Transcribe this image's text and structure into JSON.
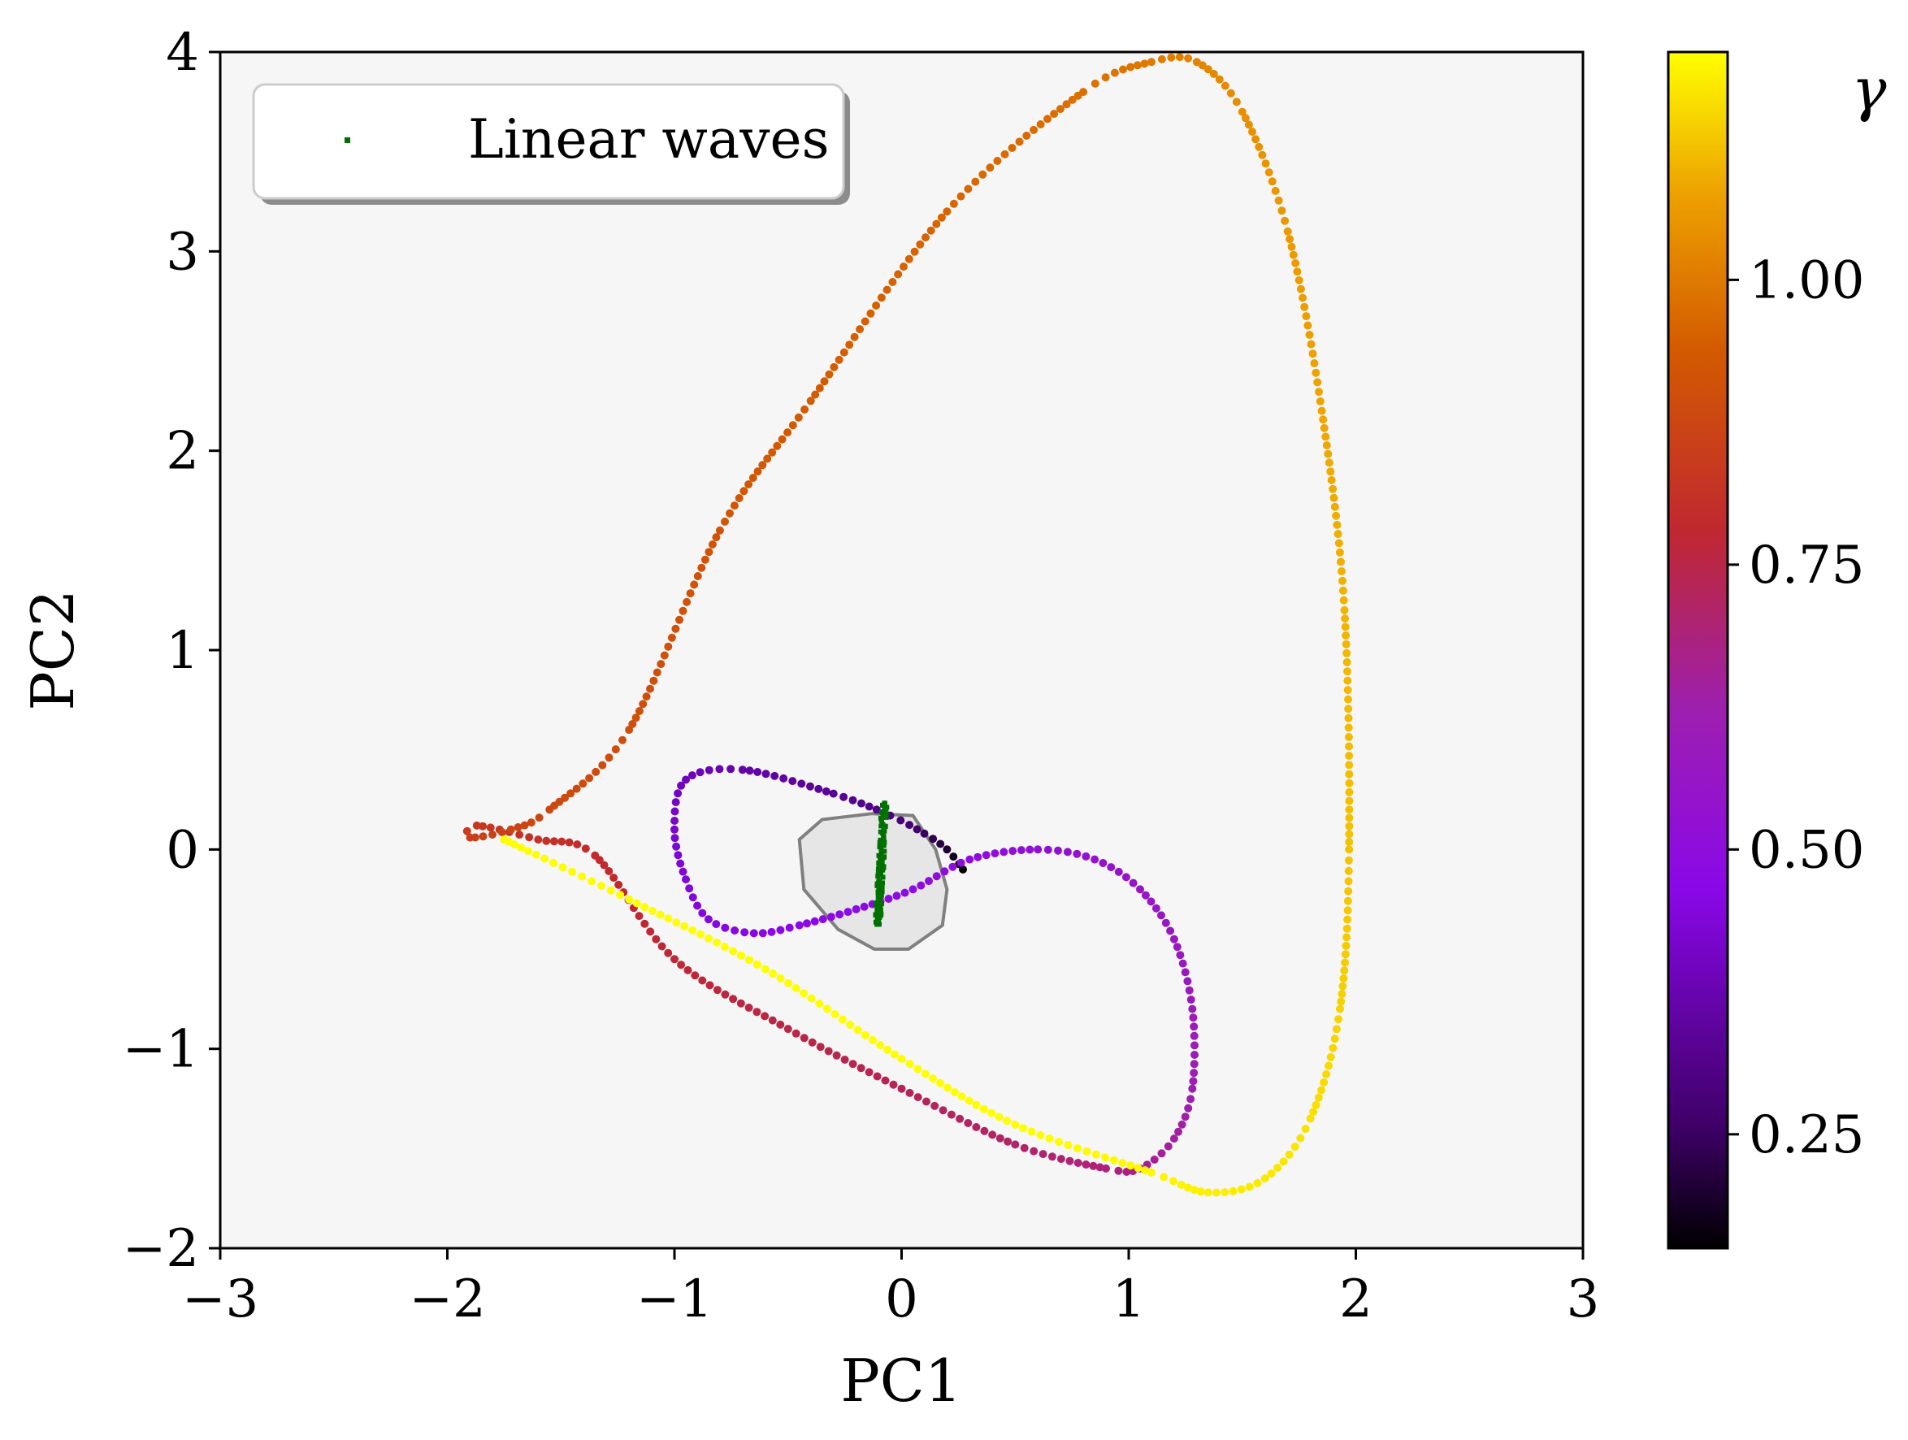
{
  "chart_data": {
    "type": "scatter",
    "xlabel": "PC1",
    "ylabel": "PC2",
    "xlim": [
      -3,
      3
    ],
    "ylim": [
      -2,
      4
    ],
    "xticks": [
      -3,
      -2,
      -1,
      0,
      1,
      2,
      3
    ],
    "yticks": [
      -2,
      -1,
      0,
      1,
      2,
      3,
      4
    ],
    "xtick_labels": [
      "−3",
      "−2",
      "−1",
      "0",
      "1",
      "2",
      "3"
    ],
    "ytick_labels": [
      "−2",
      "−1",
      "0",
      "1",
      "2",
      "3",
      "4"
    ],
    "grid": false,
    "plot_background": "#f6f6f6",
    "legend": {
      "placement": "upper-left",
      "entries": [
        {
          "label": "Linear waves",
          "color": "#007000"
        }
      ]
    },
    "colorbar": {
      "label": "γ",
      "colormap": "gnuplot",
      "range": [
        0.15,
        1.2
      ],
      "ticks": [
        0.25,
        0.5,
        0.75,
        1.0
      ],
      "tick_labels": [
        "0.25",
        "0.50",
        "0.75",
        "1.00"
      ]
    },
    "region": {
      "name": "linear-wave region",
      "fill": "#e6e6e6",
      "stroke": "#808080",
      "polygon": [
        [
          -0.13,
          0.18
        ],
        [
          0.05,
          0.17
        ],
        [
          0.15,
          0.0
        ],
        [
          0.2,
          -0.2
        ],
        [
          0.18,
          -0.38
        ],
        [
          0.03,
          -0.5
        ],
        [
          -0.12,
          -0.5
        ],
        [
          -0.28,
          -0.4
        ],
        [
          -0.43,
          -0.2
        ],
        [
          -0.45,
          0.05
        ],
        [
          -0.35,
          0.15
        ]
      ]
    },
    "linear_waves": {
      "color": "#007000",
      "x_range": [
        -0.12,
        -0.06
      ],
      "y_range": [
        -0.38,
        0.25
      ]
    },
    "series": [
      {
        "role": "trajectory",
        "points": [
          [
            0.27,
            -0.1,
            0.15
          ],
          [
            0.2,
            -0.0,
            0.2
          ],
          [
            0.1,
            0.08,
            0.25
          ],
          [
            -0.05,
            0.17,
            0.3
          ],
          [
            -0.3,
            0.28,
            0.33
          ],
          [
            -0.7,
            0.4,
            0.36
          ],
          [
            -0.95,
            0.35,
            0.39
          ],
          [
            -1.0,
            0.1,
            0.42
          ],
          [
            -0.95,
            -0.15,
            0.44
          ],
          [
            -0.85,
            -0.35,
            0.45
          ],
          [
            -0.65,
            -0.42,
            0.46
          ],
          [
            -0.45,
            -0.38,
            0.47
          ],
          [
            -0.2,
            -0.3,
            0.48
          ],
          [
            0.05,
            -0.2,
            0.49
          ],
          [
            0.3,
            -0.05,
            0.5
          ],
          [
            0.6,
            0.0,
            0.52
          ],
          [
            0.85,
            -0.05,
            0.54
          ],
          [
            1.05,
            -0.2,
            0.56
          ],
          [
            1.2,
            -0.45,
            0.58
          ],
          [
            1.28,
            -0.8,
            0.6
          ],
          [
            1.28,
            -1.2,
            0.62
          ],
          [
            1.2,
            -1.45,
            0.64
          ],
          [
            1.05,
            -1.6,
            0.67
          ],
          [
            0.9,
            -1.6,
            0.69
          ],
          [
            0.5,
            -1.48,
            0.71
          ],
          [
            0.0,
            -1.2,
            0.73
          ],
          [
            -0.5,
            -0.9,
            0.75
          ],
          [
            -1.0,
            -0.55,
            0.77
          ],
          [
            -1.35,
            -0.03,
            0.79
          ],
          [
            -1.6,
            0.05,
            0.81
          ],
          [
            -1.87,
            0.12,
            0.83
          ],
          [
            -1.9,
            0.06,
            0.85
          ],
          [
            -1.72,
            0.1,
            0.87
          ],
          [
            -1.55,
            0.2,
            0.88
          ],
          [
            -1.2,
            0.6,
            0.9
          ],
          [
            -0.8,
            1.6,
            0.92
          ],
          [
            -0.4,
            2.25,
            0.94
          ],
          [
            0.2,
            3.2,
            0.96
          ],
          [
            0.8,
            3.8,
            0.98
          ],
          [
            1.1,
            3.95,
            1.0
          ],
          [
            1.3,
            3.95,
            1.02
          ],
          [
            1.5,
            3.7,
            1.04
          ],
          [
            1.7,
            3.1,
            1.06
          ],
          [
            1.85,
            2.2,
            1.08
          ],
          [
            1.95,
            1.2,
            1.1
          ],
          [
            1.97,
            0.0,
            1.12
          ],
          [
            1.93,
            -0.8,
            1.14
          ],
          [
            1.8,
            -1.35,
            1.16
          ],
          [
            1.6,
            -1.65,
            1.17
          ],
          [
            1.35,
            -1.72,
            1.18
          ],
          [
            1.1,
            -1.62,
            1.19
          ],
          [
            0.5,
            -1.38,
            1.2
          ],
          [
            0.0,
            -1.05,
            1.2
          ],
          [
            -0.6,
            -0.6,
            1.2
          ],
          [
            -1.2,
            -0.25,
            1.2
          ],
          [
            -1.75,
            0.05,
            1.2
          ]
        ]
      }
    ]
  }
}
